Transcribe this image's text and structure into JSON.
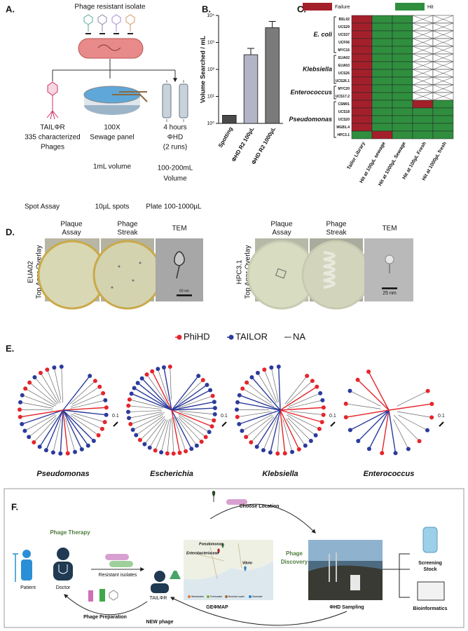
{
  "panel_labels": [
    "A.",
    "B.",
    "C.",
    "D.",
    "E.",
    "F."
  ],
  "panel_a": {
    "title": "Phage resistant isolate",
    "columns": [
      [
        "TAILΦR",
        "335 characterized",
        "Phages"
      ],
      [
        "100X",
        "Sewage panel"
      ],
      [
        "4 hours",
        "ΦHD",
        "(2 runs)"
      ]
    ],
    "volume_row": [
      "1mL volume",
      "100-200mL",
      "Volume"
    ],
    "method_row": [
      "Spot Assay",
      "10µL spots",
      "Plate 100-1000µL"
    ]
  },
  "chart_data": {
    "type": "bar",
    "ylabel": "Volume Searched / mL",
    "categories": [
      "Spotting",
      "ΦHD R2 100µL",
      "ΦHD R2 1000µL"
    ],
    "values": [
      2,
      350,
      3500
    ],
    "errors": [
      null,
      250,
      2500
    ],
    "colors": [
      "#4a4a4a",
      "#b4b4c8",
      "#7a7a7a"
    ],
    "log": true,
    "ylim": [
      1,
      10000
    ],
    "yticks": [
      {
        "value": 1,
        "label": "10⁰"
      },
      {
        "value": 10,
        "label": "10¹"
      },
      {
        "value": 100,
        "label": "10²"
      },
      {
        "value": 1000,
        "label": "10³"
      },
      {
        "value": 10000,
        "label": "10⁴"
      }
    ]
  },
  "panel_c": {
    "legend": [
      "Failure",
      "Hit"
    ],
    "colors": [
      "#a3202a",
      "#2f8f3f"
    ],
    "columns": [
      "Tailor Library",
      "Hit at 100µL sewage",
      "Hit at 1000µL Sewage",
      "Hit at 100µL Fresh",
      "Hit at 1000µL fresh"
    ],
    "rows": [
      "BSL02",
      "UCS29",
      "UCS37",
      "UCF06",
      "MYC16",
      "EUA02",
      "EUA03",
      "UCS26",
      "UCS26.1",
      "MYC20",
      "UCS17.2",
      "CSM01",
      "UCS18",
      "UCS20",
      "MGB1.4",
      "HPC3.1"
    ],
    "groups": [
      {
        "name": "E. coli",
        "count": 5
      },
      {
        "name": "Klebsiella",
        "count": 4
      },
      {
        "name": "Enterococcus",
        "count": 2
      },
      {
        "name": "Pseudomonas",
        "count": 5
      }
    ],
    "cells": [
      [
        0,
        1,
        1,
        null,
        null
      ],
      [
        0,
        1,
        1,
        null,
        null
      ],
      [
        0,
        1,
        1,
        null,
        null
      ],
      [
        0,
        1,
        1,
        null,
        null
      ],
      [
        0,
        1,
        1,
        null,
        null
      ],
      [
        0,
        1,
        1,
        null,
        null
      ],
      [
        0,
        1,
        1,
        null,
        null
      ],
      [
        0,
        1,
        1,
        null,
        null
      ],
      [
        0,
        1,
        1,
        null,
        null
      ],
      [
        0,
        1,
        1,
        null,
        null
      ],
      [
        0,
        1,
        1,
        null,
        null
      ],
      [
        0,
        1,
        1,
        0,
        1
      ],
      [
        0,
        1,
        1,
        1,
        1
      ],
      [
        0,
        1,
        1,
        1,
        1
      ],
      [
        0,
        1,
        1,
        1,
        1
      ],
      [
        1,
        0,
        1,
        1,
        1
      ]
    ]
  },
  "panel_d": {
    "headers": [
      [
        "Plaque",
        "Assay"
      ],
      [
        "Phage",
        "Streak"
      ],
      [
        "TEM"
      ]
    ],
    "samples": [
      {
        "name": "EUA02",
        "method": "Top Agar Overlay",
        "scale": "50 nm"
      },
      {
        "name": "HPC3.1",
        "method": "Top Agar Overlay",
        "scale": "25 nm"
      }
    ]
  },
  "panel_e": {
    "legend": [
      {
        "name": "PhiHD",
        "color": "#e4252b"
      },
      {
        "name": "TAILOR",
        "color": "#2b3b9c"
      },
      {
        "name": "NA",
        "color": "#777777"
      }
    ],
    "trees": [
      {
        "name": "Pseudomonas",
        "scale": "0.1"
      },
      {
        "name": "Escherichia",
        "scale": "0.1"
      },
      {
        "name": "Klebsiella",
        "scale": "0.1"
      },
      {
        "name": "Enterococcus",
        "scale": "0.1"
      }
    ]
  },
  "panel_f": {
    "therapy": "Phage Therapy",
    "patient": "Patient",
    "doctor": "Doctor",
    "resistant": "Resistant isolates",
    "tailor": "TAILΦR",
    "preparation": "Phage Preparation",
    "new_phage": "NEW phage",
    "choose": "Choose Location",
    "discovery": [
      "Phage",
      "Discovery"
    ],
    "map_title": "GEΦMAP",
    "map_labels": [
      "Pseudomonas",
      "Enterobacteriaceae",
      "Vibrio"
    ],
    "map_legend": [
      "Wastewater",
      "Freshwater",
      "Brackish water",
      "Seawater"
    ],
    "sampling": "ΦHD Sampling",
    "stock": [
      "Screening",
      "Stock"
    ],
    "bioinformatics": "Bioinformatics"
  }
}
